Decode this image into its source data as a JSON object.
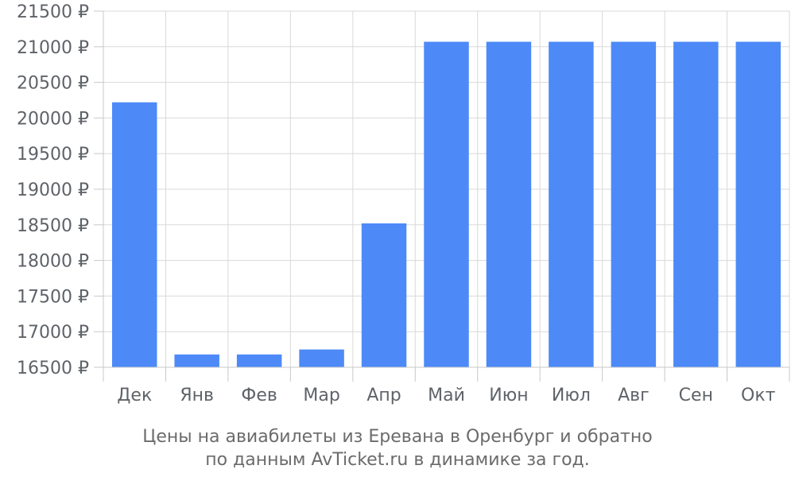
{
  "chart_data": {
    "type": "bar",
    "categories": [
      "Дек",
      "Янв",
      "Фев",
      "Мар",
      "Апр",
      "Май",
      "Июн",
      "Июл",
      "Авг",
      "Сен",
      "Окт"
    ],
    "values": [
      20220,
      16680,
      16680,
      16750,
      18520,
      21070,
      21070,
      21070,
      21070,
      21070,
      21070
    ],
    "ylim": [
      16500,
      21500
    ],
    "yticks": [
      16500,
      17000,
      17500,
      18000,
      18500,
      19000,
      19500,
      20000,
      20500,
      21000,
      21500
    ],
    "ytick_suffix": " ₽",
    "title": "",
    "xlabel": "",
    "ylabel": "",
    "grid": true,
    "bar_color": "#4d8af8"
  },
  "caption": {
    "line1": "Цены на авиабилеты из Еревана в Оренбург и обратно",
    "line2": "по данным AvTicket.ru в динамике за год."
  }
}
